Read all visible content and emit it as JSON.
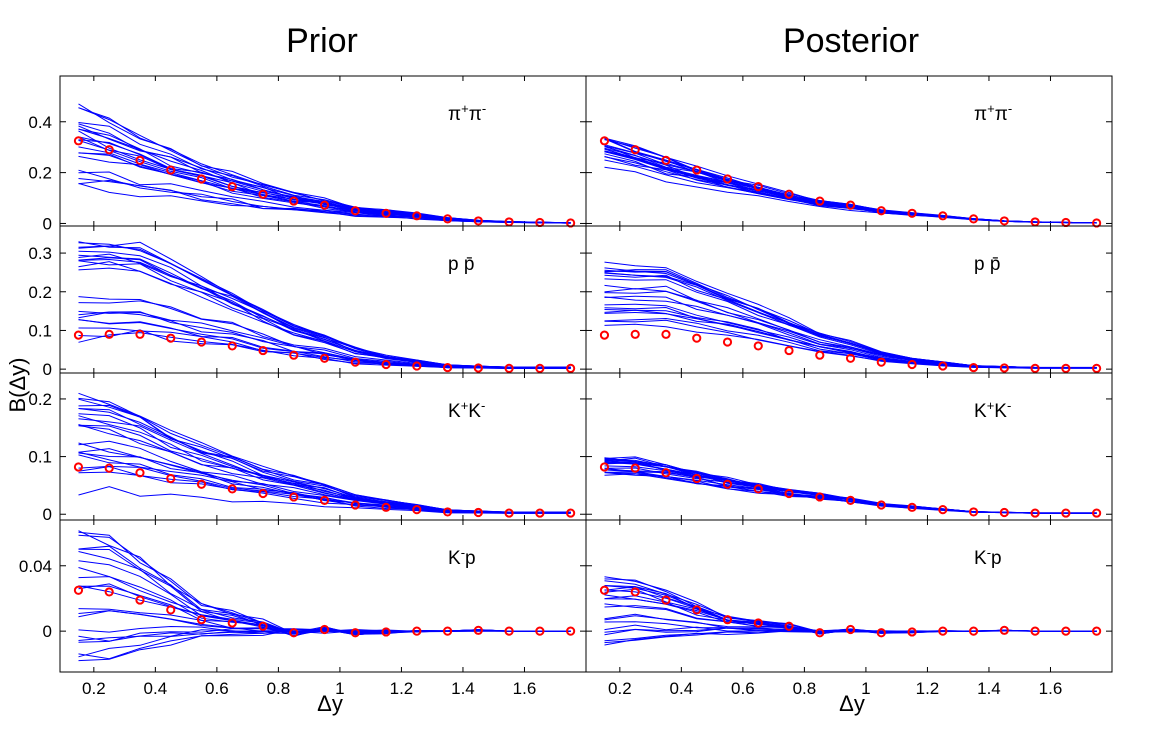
{
  "chart_data": {
    "type": "line",
    "columns": [
      {
        "key": "prior",
        "title": "Prior"
      },
      {
        "key": "posterior",
        "title": "Posterior"
      }
    ],
    "xlabel": "Δy",
    "ylabel": "B(Δy)",
    "xlim": [
      0.09,
      1.8
    ],
    "x_ticks": [
      0.2,
      0.4,
      0.6,
      0.8,
      1,
      1.2,
      1.4,
      1.6
    ],
    "x_tick_labels": [
      "0.2",
      "0.4",
      "0.6",
      "0.8",
      "1",
      "1.2",
      "1.4",
      "1.6"
    ],
    "x": [
      0.15,
      0.25,
      0.35,
      0.45,
      0.55,
      0.65,
      0.75,
      0.85,
      0.95,
      1.05,
      1.15,
      1.25,
      1.35,
      1.45,
      1.55,
      1.65,
      1.75
    ],
    "colors": {
      "model_curves": "#0000ff",
      "data_points": "#ff0000"
    },
    "rows": [
      {
        "label": "π+π-",
        "label_parts": [
          {
            "text": "π"
          },
          {
            "text": "+",
            "sup": true
          },
          {
            "text": "π"
          },
          {
            "text": "-",
            "sup": true
          }
        ],
        "ylim": [
          -0.01,
          0.58
        ],
        "y_ticks": [
          0,
          0.2,
          0.4
        ],
        "y_tick_labels": [
          "0",
          "0.2",
          "0.4"
        ],
        "data_points": [
          0.325,
          0.29,
          0.248,
          0.21,
          0.175,
          0.145,
          0.115,
          0.088,
          0.072,
          0.05,
          0.04,
          0.03,
          0.018,
          0.01,
          0.006,
          0.004,
          0.002
        ],
        "prior_amp_range": [
          0.14,
          0.48
        ],
        "posterior_amp_range": [
          0.2,
          0.36
        ]
      },
      {
        "label": "p p̄",
        "label_parts": [
          {
            "text": "p  p̄"
          }
        ],
        "ylim": [
          -0.01,
          0.37
        ],
        "y_ticks": [
          0,
          0.1,
          0.2,
          0.3
        ],
        "y_tick_labels": [
          "0",
          "0.1",
          "0.2",
          "0.3"
        ],
        "data_points": [
          0.088,
          0.09,
          0.09,
          0.08,
          0.07,
          0.06,
          0.048,
          0.036,
          0.028,
          0.018,
          0.012,
          0.008,
          0.004,
          0.003,
          0.002,
          0.002,
          0.002
        ],
        "prior_amp_range": [
          0.08,
          0.34
        ],
        "posterior_amp_range": [
          0.09,
          0.28
        ]
      },
      {
        "label": "K+K-",
        "label_parts": [
          {
            "text": "K"
          },
          {
            "text": "+",
            "sup": true
          },
          {
            "text": "K"
          },
          {
            "text": "-",
            "sup": true
          }
        ],
        "ylim": [
          -0.01,
          0.245
        ],
        "y_ticks": [
          0,
          0.1,
          0.2
        ],
        "y_tick_labels": [
          "0",
          "0.1",
          "0.2"
        ],
        "data_points": [
          0.082,
          0.08,
          0.072,
          0.062,
          0.052,
          0.044,
          0.036,
          0.03,
          0.024,
          0.016,
          0.012,
          0.008,
          0.004,
          0.003,
          0.002,
          0.002,
          0.002
        ],
        "prior_amp_range": [
          0.02,
          0.22
        ],
        "posterior_amp_range": [
          0.07,
          0.105
        ]
      },
      {
        "label": "K-p",
        "label_parts": [
          {
            "text": "K"
          },
          {
            "text": "-",
            "sup": true
          },
          {
            "text": "p"
          }
        ],
        "ylim": [
          -0.025,
          0.068
        ],
        "y_ticks": [
          0,
          0.04
        ],
        "y_tick_labels": [
          "0",
          "0.04"
        ],
        "data_points": [
          0.025,
          0.024,
          0.019,
          0.013,
          0.007,
          0.005,
          0.003,
          -0.001,
          0.001,
          -0.001,
          -0.0005,
          0.0,
          0.0,
          0.0005,
          0.0,
          0.0,
          0.0
        ],
        "prior_amp_range": [
          -0.02,
          0.068
        ],
        "posterior_amp_range": [
          -0.008,
          0.035
        ]
      }
    ]
  }
}
